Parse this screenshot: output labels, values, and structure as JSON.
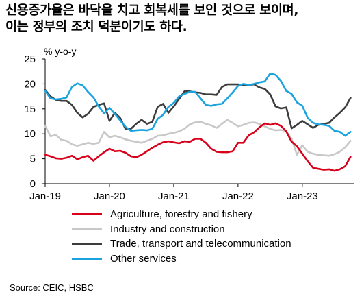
{
  "title_lines": [
    "신용증가율은 바닥을 치고 회복세를 보인 것으로 보이며,",
    "이는 정부의 조치 덕분이기도 하다."
  ],
  "source": "Source: CEIC, HSBC",
  "chart_data": {
    "type": "line",
    "ylabel": "% y-o-y",
    "ylim": [
      0,
      25
    ],
    "yticks": [
      0,
      5,
      10,
      15,
      20,
      25
    ],
    "xtick_labels": [
      "Jan-19",
      "Jan-20",
      "Jan-21",
      "Jan-22",
      "Jan-23"
    ],
    "xtick_months": [
      0,
      12,
      24,
      36,
      48
    ],
    "grid": false,
    "legend_position": "bottom",
    "series": [
      {
        "name": "Agriculture, forestry and fishery",
        "color": "#d9001b",
        "values": [
          5.8,
          5.5,
          5.1,
          5.0,
          5.2,
          5.6,
          4.9,
          5.3,
          5.6,
          4.6,
          5.5,
          6.3,
          7.0,
          6.5,
          6.6,
          6.2,
          5.5,
          5.3,
          5.8,
          6.5,
          7.2,
          7.8,
          8.3,
          8.5,
          8.3,
          8.1,
          8.5,
          8.4,
          9.0,
          9.0,
          8.2,
          7.0,
          6.4,
          6.3,
          6.3,
          6.5,
          8.2,
          8.2,
          9.7,
          10.3,
          11.3,
          12.1,
          11.8,
          12.1,
          11.6,
          10.5,
          8.4,
          7.5,
          6.0,
          4.5,
          3.2,
          3.0,
          2.8,
          2.9,
          2.6,
          2.9,
          3.5,
          5.4
        ]
      },
      {
        "name": "Industry and construction",
        "color": "#c8c8c8",
        "values": [
          11.6,
          9.5,
          9.8,
          8.8,
          8.6,
          7.9,
          7.6,
          7.9,
          8.2,
          8.0,
          8.2,
          10.4,
          9.3,
          9.6,
          9.3,
          8.9,
          8.6,
          8.4,
          8.2,
          8.6,
          9.0,
          9.6,
          9.7,
          10.0,
          10.2,
          10.5,
          11.0,
          11.9,
          12.3,
          12.4,
          12.0,
          11.7,
          11.2,
          12.0,
          12.8,
          12.2,
          11.5,
          11.8,
          12.2,
          12.3,
          12.0,
          11.5,
          11.0,
          10.7,
          10.8,
          10.5,
          9.0,
          5.8,
          7.7,
          6.4,
          6.0,
          5.8,
          5.7,
          5.6,
          5.9,
          6.4,
          7.3,
          8.6
        ]
      },
      {
        "name": "Trade, transport and telecommunication",
        "color": "#3c3c3c",
        "values": [
          18.8,
          17.5,
          16.8,
          16.6,
          16.6,
          15.8,
          14.2,
          13.3,
          14.0,
          15.4,
          15.8,
          16.1,
          12.6,
          14.2,
          13.2,
          11.0,
          11.0,
          12.0,
          12.8,
          12.0,
          12.4,
          15.4,
          16.0,
          14.2,
          15.5,
          17.0,
          18.5,
          18.5,
          18.3,
          18.2,
          17.9,
          17.9,
          17.8,
          19.4,
          19.9,
          19.9,
          19.9,
          19.8,
          19.8,
          19.9,
          19.3,
          19.0,
          17.9,
          15.5,
          15.1,
          15.3,
          11.1,
          11.8,
          12.6,
          11.9,
          11.2,
          11.8,
          12.0,
          12.2,
          13.3,
          14.2,
          15.3,
          17.2
        ]
      },
      {
        "name": "Other services",
        "color": "#1ba3e0",
        "values": [
          18.6,
          17.1,
          16.9,
          17.0,
          17.3,
          19.4,
          20.1,
          19.7,
          18.4,
          17.3,
          15.5,
          14.1,
          15.2,
          14.0,
          12.7,
          11.4,
          10.6,
          10.7,
          10.8,
          10.7,
          11.0,
          13.0,
          13.8,
          15.4,
          16.2,
          17.5,
          18.0,
          18.4,
          18.4,
          17.1,
          15.8,
          15.6,
          15.9,
          16.0,
          17.1,
          18.3,
          19.6,
          20.0,
          19.8,
          20.0,
          20.3,
          20.5,
          22.1,
          21.8,
          20.6,
          18.6,
          18.0,
          16.3,
          15.6,
          13.2,
          12.2,
          11.9,
          11.8,
          11.6,
          10.6,
          10.4,
          9.6,
          10.4
        ]
      }
    ]
  }
}
